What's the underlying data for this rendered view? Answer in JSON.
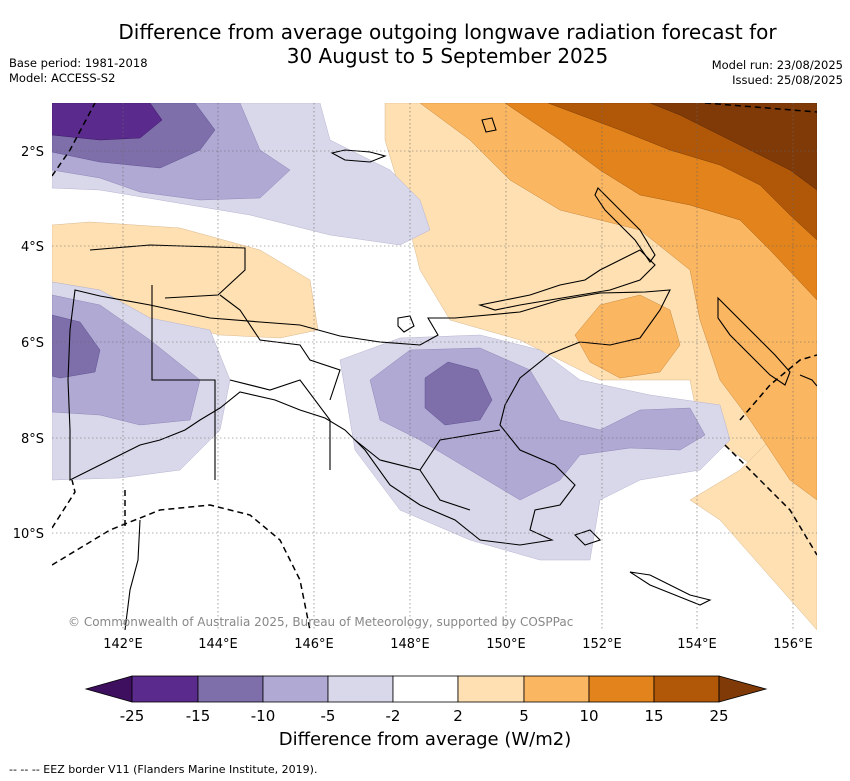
{
  "title": {
    "line1": "Difference from average outgoing longwave radiation forecast for",
    "line2": "30 August to 5 September 2025"
  },
  "meta_left": {
    "base_period": "Base period: 1981-2018",
    "model": "Model: ACCESS-S2"
  },
  "meta_right": {
    "model_run": "Model run: 23/08/2025",
    "issued": "Issued: 25/08/2025"
  },
  "copyright": "© Commonwealth of Australia 2025, Bureau of Meteorology, supported by COSPPac",
  "lat_labels": [
    "2°S",
    "4°S",
    "6°S",
    "8°S",
    "10°S"
  ],
  "lon_labels": [
    "142°E",
    "144°E",
    "146°E",
    "148°E",
    "150°E",
    "152°E",
    "154°E",
    "156°E"
  ],
  "colorbar": {
    "ticks": [
      "-25",
      "-15",
      "-10",
      "-5",
      "-2",
      "2",
      "5",
      "10",
      "15",
      "25"
    ],
    "colors": [
      "#3d0f5e",
      "#5a2a8c",
      "#7e6fab",
      "#b0a9d3",
      "#d9d8ea",
      "#ffffff",
      "#fee0b2",
      "#fbb661",
      "#e2831c",
      "#b15708",
      "#7f3a08"
    ],
    "label": "Difference from average (W/m2)"
  },
  "legend_footer": "-- -- -- EEZ border V11 (Flanders Marine Institute, 2019)."
}
